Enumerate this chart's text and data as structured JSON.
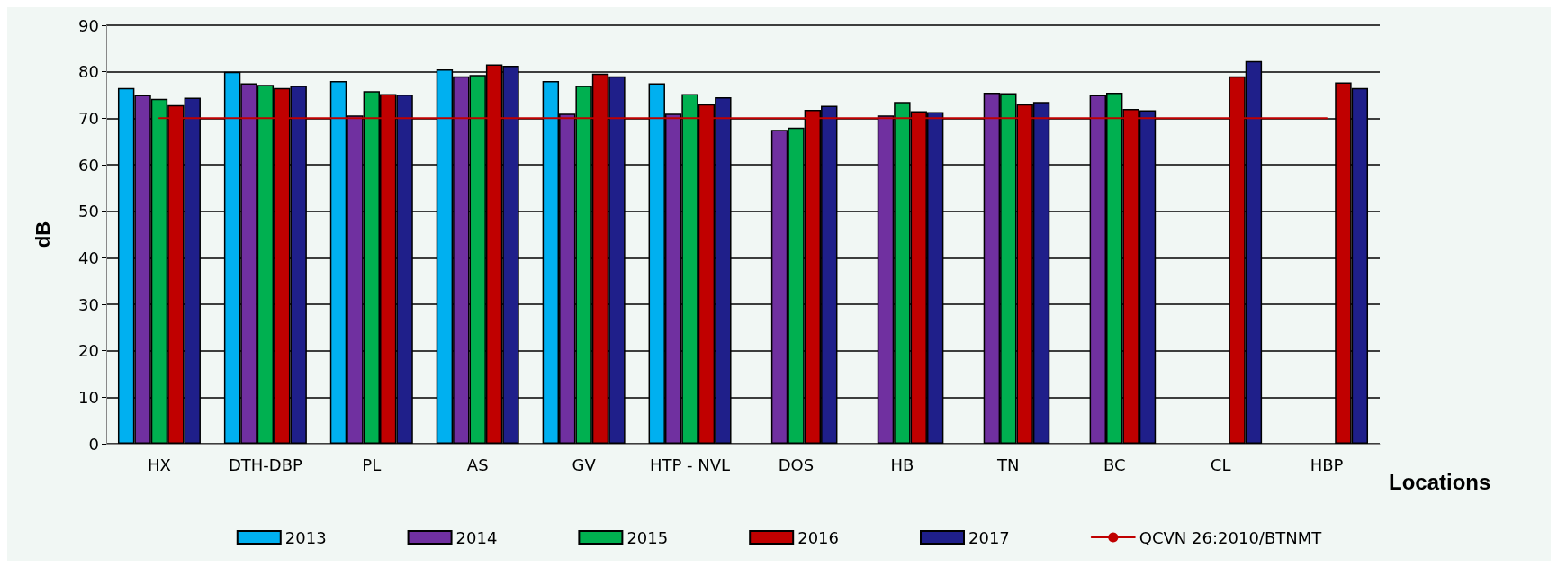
{
  "chart_data": {
    "type": "bar",
    "xlabel": "Locations",
    "ylabel": "dB",
    "categories": [
      "HX",
      "DTH-DBP",
      "PL",
      "AS",
      "GV",
      "HTP - NVL",
      "DOS",
      "HB",
      "TN",
      "BC",
      "CL",
      "HBP"
    ],
    "series": [
      {
        "name": "2013",
        "color": "#00b0f0",
        "values": [
          76.5,
          80,
          78,
          80.5,
          78,
          77.5,
          null,
          null,
          null,
          null,
          null,
          null
        ]
      },
      {
        "name": "2014",
        "color": "#7030a0",
        "values": [
          75,
          77.5,
          70.6,
          79,
          71,
          71,
          67.5,
          70.6,
          75.5,
          75,
          null,
          null
        ]
      },
      {
        "name": "2015",
        "color": "#00b050",
        "values": [
          74.2,
          77.2,
          75.8,
          79.3,
          77,
          75.2,
          68,
          73.5,
          75.4,
          75.5,
          null,
          null
        ]
      },
      {
        "name": "2016",
        "color": "#c00000",
        "values": [
          72.8,
          76.5,
          75.2,
          81.6,
          79.6,
          73,
          71.8,
          71.5,
          73,
          72,
          79,
          77.7
        ]
      },
      {
        "name": "2017",
        "color": "#1f1f8a",
        "values": [
          74.4,
          77,
          75.1,
          81.3,
          79,
          74.5,
          72.7,
          71.3,
          73.5,
          71.7,
          82.3,
          76.5
        ]
      },
      {
        "name": "QCVN 26:2010/BTNMT",
        "type": "line",
        "color": "#c00000",
        "values": [
          70,
          70,
          70,
          70,
          70,
          70,
          70,
          70,
          70,
          70,
          70,
          70
        ]
      }
    ],
    "ylim": [
      0,
      90
    ],
    "yticks": [
      0,
      10,
      20,
      30,
      40,
      50,
      60,
      70,
      80,
      90
    ],
    "grid": "y",
    "legend": "bottom"
  }
}
